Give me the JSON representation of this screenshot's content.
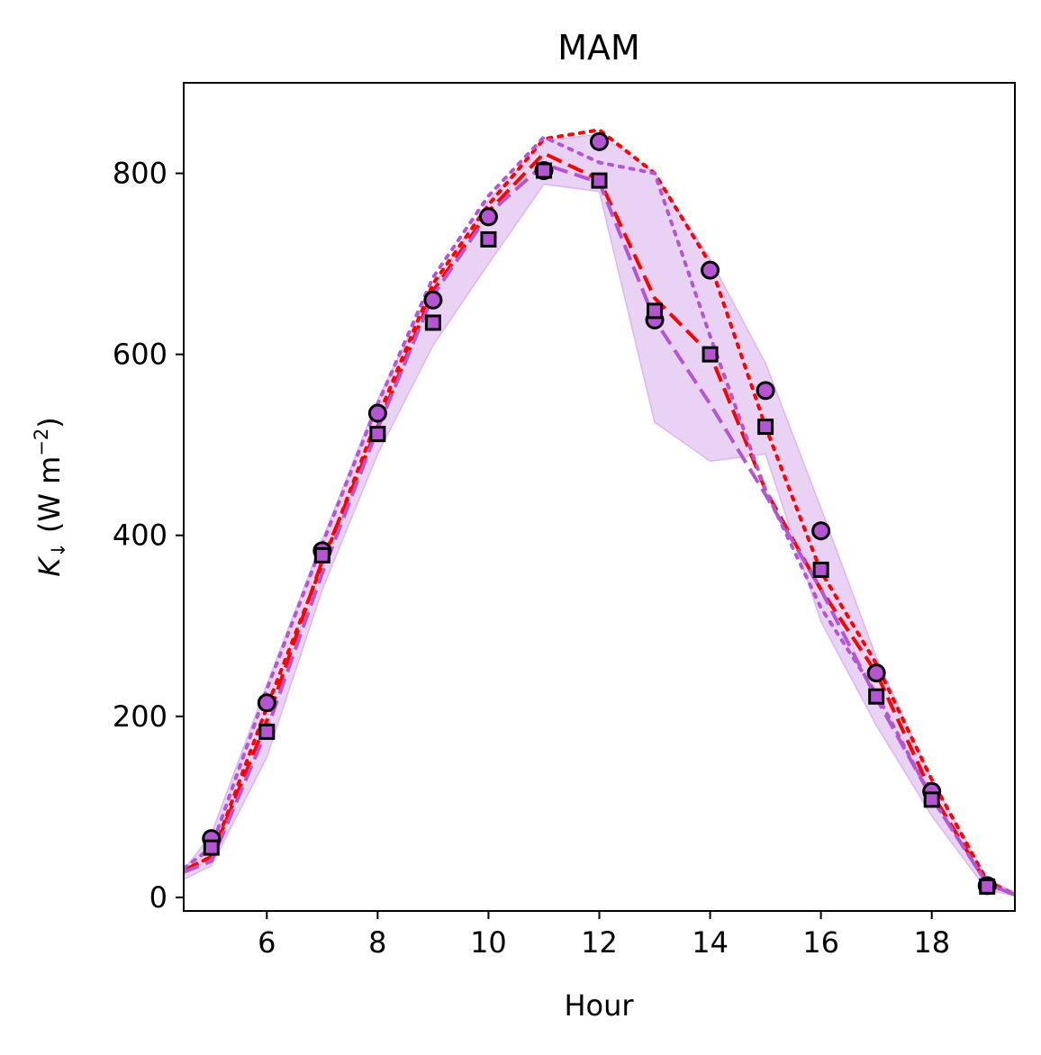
{
  "chart_data": {
    "type": "line",
    "title": "MAM",
    "xlabel": "Hour",
    "ylabel_main": "K",
    "ylabel_sub": "↓",
    "ylabel_units": "(W m",
    "ylabel_exp": "−2",
    "ylabel_close": ")",
    "xlim": [
      4.5,
      19.5
    ],
    "ylim": [
      -15,
      900
    ],
    "xticks": [
      6,
      8,
      10,
      12,
      14,
      16,
      18
    ],
    "yticks": [
      0,
      200,
      400,
      600,
      800
    ],
    "grid": false,
    "colors": {
      "red": "#ff0000",
      "purple": "#b455d2",
      "band": "#e9d2f4",
      "band_edge": "#dcb6ee",
      "marker_fill": "#b455d2",
      "marker_edge": "#000000"
    },
    "band": {
      "x": [
        4.5,
        5,
        6,
        7,
        8,
        9,
        10,
        11,
        12,
        13,
        14,
        15,
        16,
        17,
        18,
        19,
        19.5
      ],
      "lower": [
        20,
        35,
        155,
        340,
        490,
        610,
        700,
        788,
        780,
        525,
        482,
        490,
        305,
        190,
        90,
        8,
        2
      ],
      "upper": [
        30,
        70,
        235,
        395,
        550,
        675,
        770,
        836,
        843,
        800,
        705,
        590,
        430,
        265,
        130,
        20,
        6
      ]
    },
    "series": [
      {
        "style": "dashed",
        "color": "red",
        "x": [
          4.5,
          5,
          6,
          7,
          8,
          9,
          10,
          11,
          12,
          13,
          14,
          15,
          16,
          17,
          18,
          19,
          19.5
        ],
        "values": [
          30,
          45,
          195,
          372,
          520,
          670,
          758,
          822,
          793,
          662,
          600,
          450,
          340,
          248,
          115,
          15,
          3
        ]
      },
      {
        "style": "dotted",
        "color": "red",
        "x": [
          4.5,
          5,
          6,
          7,
          8,
          9,
          10,
          11,
          12,
          13,
          14,
          15,
          16,
          17,
          18,
          19,
          19.5
        ],
        "values": [
          30,
          45,
          210,
          368,
          530,
          678,
          765,
          838,
          848,
          800,
          700,
          520,
          360,
          258,
          130,
          18,
          3
        ]
      },
      {
        "style": "dashed",
        "color": "purple",
        "x": [
          4.5,
          5,
          6,
          7,
          8,
          9,
          10,
          11,
          12,
          13,
          14,
          15,
          16,
          17,
          18,
          19,
          19.5
        ],
        "values": [
          28,
          40,
          185,
          358,
          518,
          665,
          755,
          810,
          790,
          638,
          545,
          445,
          340,
          220,
          110,
          15,
          3
        ]
      },
      {
        "style": "dotted",
        "color": "purple",
        "x": [
          4.5,
          5,
          6,
          7,
          8,
          9,
          10,
          11,
          12,
          13,
          14,
          15,
          16,
          17,
          18,
          19,
          19.5
        ],
        "values": [
          32,
          55,
          230,
          390,
          545,
          685,
          775,
          840,
          812,
          800,
          620,
          450,
          320,
          225,
          110,
          15,
          3
        ]
      }
    ],
    "markers": [
      {
        "shape": "circle",
        "x": [
          5,
          6,
          7,
          8,
          9,
          10,
          11,
          12,
          13,
          14,
          15,
          16,
          17,
          18,
          19
        ],
        "values": [
          65,
          215,
          383,
          535,
          660,
          752,
          803,
          835,
          638,
          693,
          560,
          405,
          248,
          117,
          13
        ]
      },
      {
        "shape": "square",
        "x": [
          5,
          6,
          7,
          8,
          9,
          10,
          11,
          12,
          13,
          14,
          15,
          16,
          17,
          18,
          19
        ],
        "values": [
          55,
          183,
          378,
          512,
          635,
          727,
          803,
          792,
          648,
          600,
          520,
          362,
          222,
          108,
          12
        ]
      }
    ]
  }
}
